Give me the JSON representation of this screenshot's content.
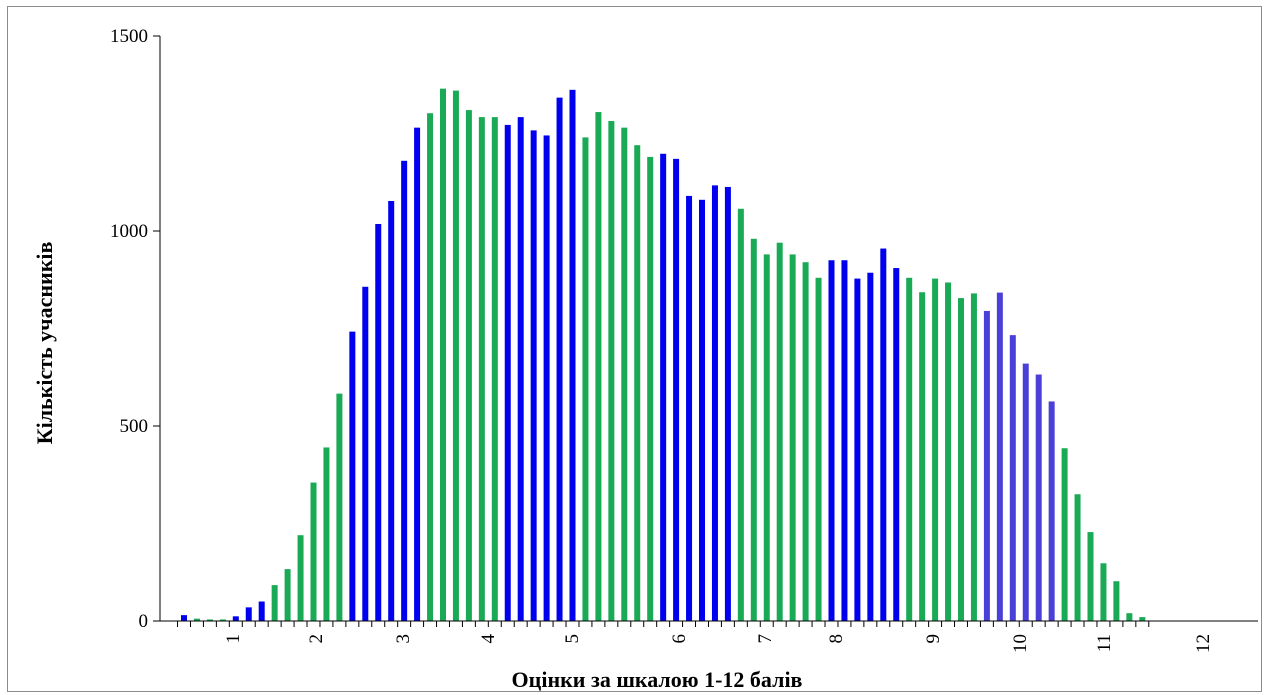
{
  "chart_data": {
    "type": "bar",
    "title": "",
    "xlabel": "Оцінки за шкалою 1-12 балів",
    "ylabel": "Кількість учасників",
    "ylim": [
      0,
      1500
    ],
    "yticks": [
      0,
      500,
      1000,
      1500
    ],
    "xtick_labels": [
      "1",
      "2",
      "3",
      "4",
      "5",
      "6",
      "7",
      "8",
      "9",
      "10",
      "11",
      "12"
    ],
    "grid": false,
    "legend": "none",
    "colors": {
      "green": "#1aaa55",
      "blue": "#0000ee",
      "violet": "#4a40d8"
    },
    "values": [
      15,
      6,
      4,
      4,
      12,
      35,
      50,
      92,
      133,
      220,
      355,
      445,
      583,
      742,
      857,
      1018,
      1077,
      1180,
      1265,
      1302,
      1365,
      1360,
      1310,
      1292,
      1292,
      1272,
      1292,
      1258,
      1245,
      1342,
      1362,
      1240,
      1305,
      1282,
      1265,
      1220,
      1190,
      1198,
      1185,
      1090,
      1080,
      1117,
      1113,
      1057,
      980,
      940,
      970,
      940,
      920,
      880,
      925,
      925,
      878,
      893,
      955,
      905,
      880,
      843,
      878,
      868,
      828,
      840,
      795,
      842,
      733,
      660,
      632,
      563,
      443,
      325,
      228,
      148,
      102,
      20,
      10
    ],
    "bar_colors": [
      "blue",
      "green",
      "green",
      "green",
      "blue",
      "blue",
      "blue",
      "green",
      "green",
      "green",
      "green",
      "green",
      "green",
      "blue",
      "blue",
      "blue",
      "blue",
      "blue",
      "blue",
      "green",
      "green",
      "green",
      "green",
      "green",
      "green",
      "blue",
      "blue",
      "blue",
      "blue",
      "blue",
      "blue",
      "green",
      "green",
      "green",
      "green",
      "green",
      "green",
      "blue",
      "blue",
      "blue",
      "blue",
      "blue",
      "blue",
      "green",
      "green",
      "green",
      "green",
      "green",
      "green",
      "green",
      "blue",
      "blue",
      "blue",
      "blue",
      "blue",
      "blue",
      "green",
      "green",
      "green",
      "green",
      "green",
      "green",
      "violet",
      "violet",
      "violet",
      "violet",
      "violet",
      "violet",
      "green",
      "green",
      "green",
      "green",
      "green",
      "green",
      "green"
    ]
  }
}
